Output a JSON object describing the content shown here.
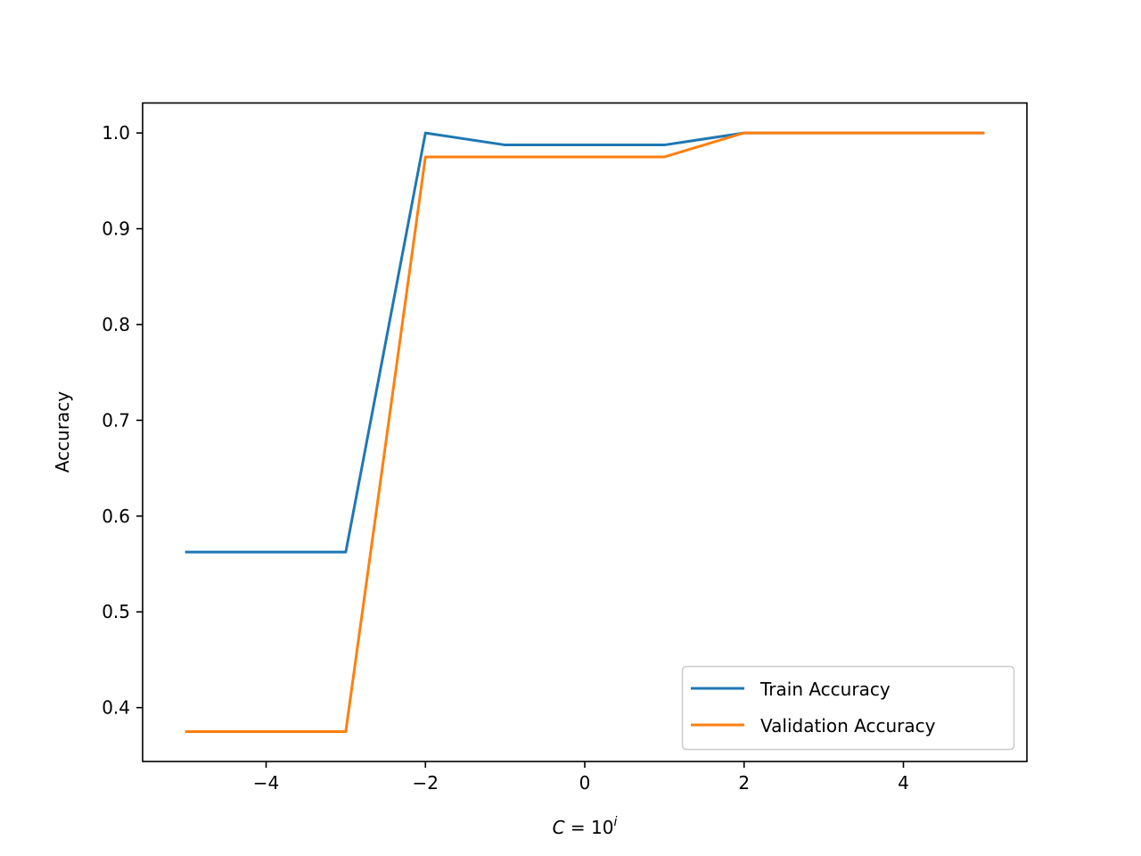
{
  "chart_data": {
    "type": "line",
    "title": "",
    "xlabel": {
      "base": "C",
      "eq": " = 10",
      "exponent": "i"
    },
    "ylabel": "Accuracy",
    "xlim": [
      -5.55,
      5.55
    ],
    "ylim": [
      0.3438,
      1.0313
    ],
    "x_ticks": [
      -4,
      -2,
      0,
      2,
      4
    ],
    "x_tick_labels": [
      "−4",
      "−2",
      "0",
      "2",
      "4"
    ],
    "y_ticks": [
      0.4,
      0.5,
      0.6,
      0.7,
      0.8,
      0.9,
      1.0
    ],
    "y_tick_labels": [
      "0.4",
      "0.5",
      "0.6",
      "0.7",
      "0.8",
      "0.9",
      "1.0"
    ],
    "grid": false,
    "legend_position": "lower-right",
    "x": [
      -5,
      -4,
      -3,
      -2,
      -1,
      0,
      1,
      2,
      3,
      4,
      5
    ],
    "series": [
      {
        "name": "Train Accuracy",
        "color": "#1f77b4",
        "values": [
          0.5625,
          0.5625,
          0.5625,
          1.0,
          0.9875,
          0.9875,
          0.9875,
          1.0,
          1.0,
          1.0,
          1.0
        ]
      },
      {
        "name": "Validation Accuracy",
        "color": "#ff7f0e",
        "values": [
          0.375,
          0.375,
          0.375,
          0.975,
          0.975,
          0.975,
          0.975,
          1.0,
          1.0,
          1.0,
          1.0
        ]
      }
    ]
  }
}
